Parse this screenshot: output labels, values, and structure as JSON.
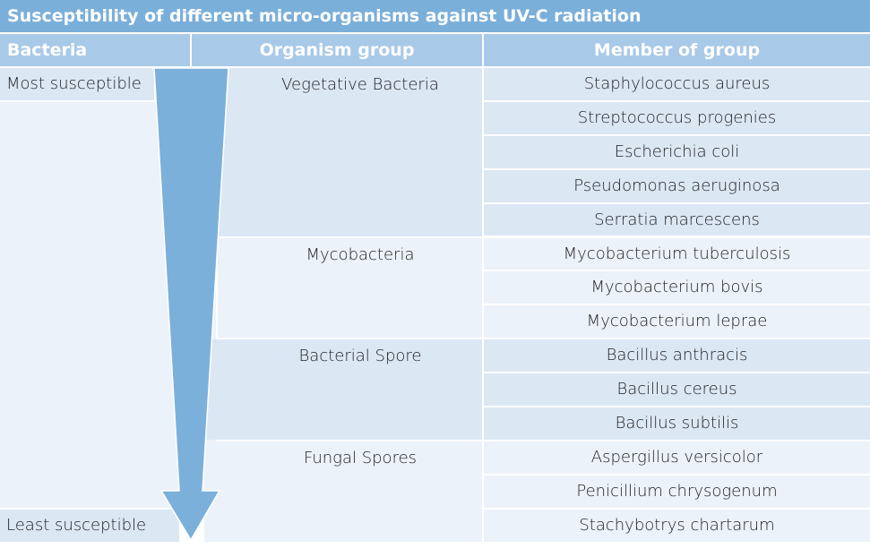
{
  "title": "Susceptibility of different micro-organisms against UV-C radiation",
  "headers": [
    "Bacteria",
    "Organism group",
    "Member of group"
  ],
  "scale": {
    "top": "Most susceptible",
    "bottom": "Least susceptible"
  },
  "groups": [
    {
      "name": "Vegetative Bacteria",
      "members": [
        "Staphylococcus aureus",
        "Streptococcus progenies",
        "Escherichia coli",
        "Pseudomonas aeruginosa",
        "Serratia marcescens"
      ]
    },
    {
      "name": "Mycobacteria",
      "members": [
        "Mycobacterium tuberculosis",
        "Mycobacterium bovis",
        "Mycobacterium leprae"
      ]
    },
    {
      "name": "Bacterial Spore",
      "members": [
        "Bacillus anthracis",
        "Bacillus cereus",
        "Bacillus subtilis"
      ]
    },
    {
      "name": "Fungal Spores",
      "members": [
        "Aspergillus versicolor",
        "Penicillium chrysogenum",
        "Stachybotrys chartarum"
      ]
    }
  ],
  "colors": {
    "title": "#7aafda",
    "header": "#a8c9e8",
    "arrow": "#7bb0db",
    "dark": "#dce7f4",
    "light": "#ecf2f9"
  }
}
